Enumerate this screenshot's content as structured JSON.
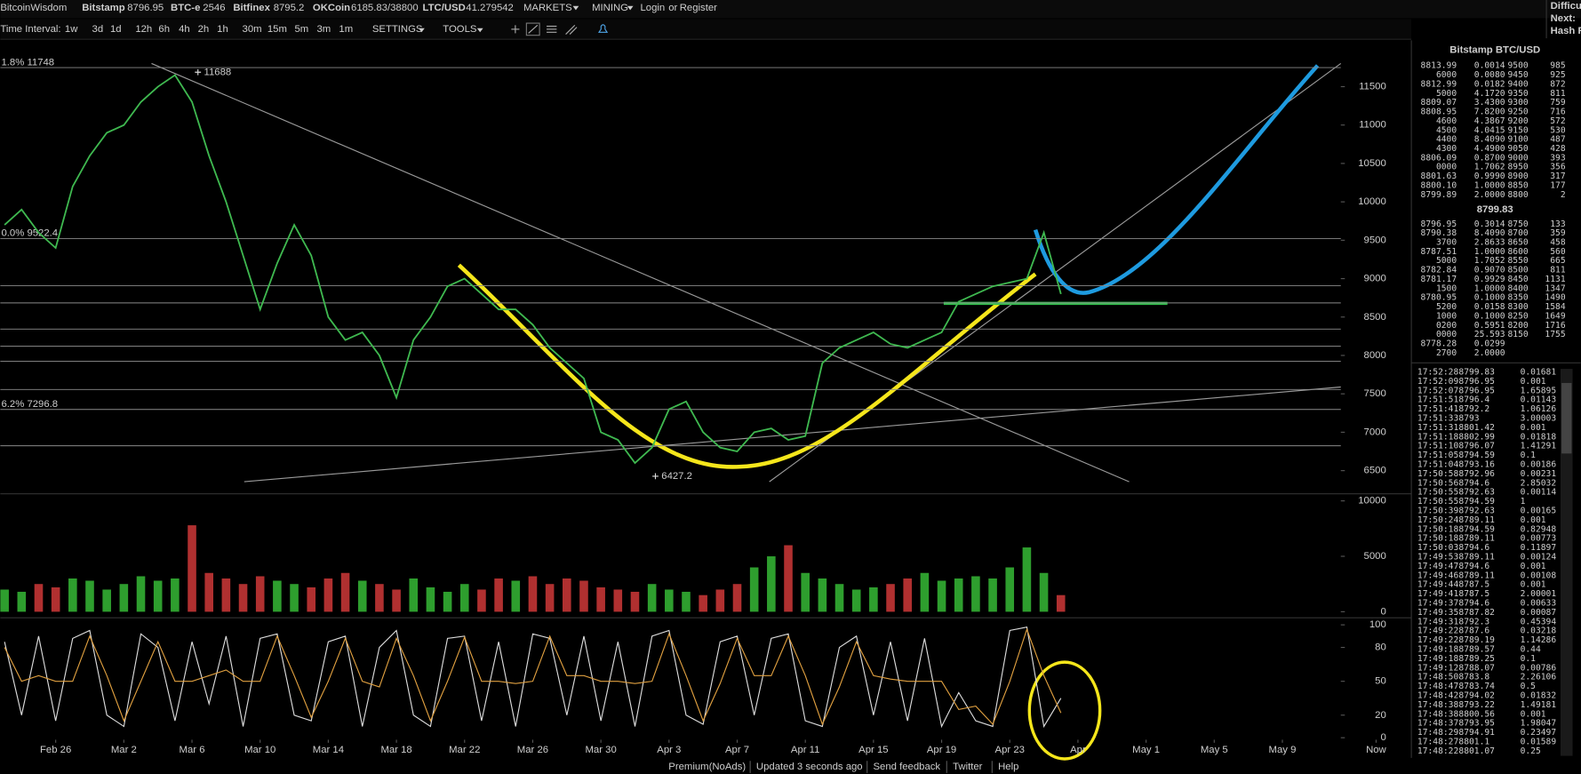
{
  "topbar": {
    "brand": "BitcoinWisdom",
    "exchanges": [
      {
        "name": "Bitstamp",
        "price": "8796.95"
      },
      {
        "name": "BTC-e",
        "price": "2546"
      },
      {
        "name": "Bitfinex",
        "price": "8795.2"
      },
      {
        "name": "OKCoin",
        "price": "6185.83/38800"
      },
      {
        "name": "LTC/USD",
        "price": "41.279542"
      }
    ],
    "menus": [
      "MARKETS",
      "MINING"
    ],
    "login": "Login",
    "or": "or",
    "register": "Register",
    "right": [
      "Difficu",
      "Next:",
      "Hash R"
    ]
  },
  "toolbar": {
    "label": "Time Interval:",
    "intervals": [
      "1w",
      "3d",
      "1d",
      "12h",
      "6h",
      "4h",
      "2h",
      "1h",
      "30m",
      "15m",
      "5m",
      "3m",
      "1m"
    ],
    "selected_index": 6,
    "settings": "SETTINGS",
    "tools": "TOOLS"
  },
  "chart_data": [
    {
      "type": "line",
      "color": "#3fb950",
      "x": [
        -3,
        -2,
        -1,
        0,
        1,
        2,
        3,
        4,
        5,
        6,
        7,
        8,
        9,
        10,
        11,
        12,
        13,
        14,
        15,
        16,
        17,
        18,
        19,
        20,
        21,
        22,
        23,
        24,
        25,
        26,
        27,
        28,
        29,
        30,
        31,
        32,
        33,
        34,
        35,
        36,
        37,
        38,
        39,
        40,
        41,
        42,
        43,
        44,
        45,
        46,
        47,
        48,
        49,
        50,
        51,
        52,
        53,
        54,
        55,
        56,
        57,
        58,
        59
      ],
      "values": [
        9700,
        9900,
        9600,
        9400,
        10200,
        10600,
        10900,
        11000,
        11300,
        11500,
        11650,
        11300,
        10600,
        10000,
        9300,
        8600,
        9200,
        9700,
        9300,
        8500,
        8200,
        8300,
        8000,
        7450,
        8200,
        8500,
        8900,
        9000,
        8800,
        8600,
        8600,
        8400,
        8100,
        7900,
        7700,
        7000,
        6900,
        6600,
        6800,
        7300,
        7400,
        7000,
        6800,
        6750,
        7000,
        7050,
        6900,
        6950,
        7900,
        8100,
        8200,
        8300,
        8150,
        8100,
        8200,
        8300,
        8700,
        8800,
        8900,
        8950,
        9000,
        9600,
        8800
      ],
      "xlim": [
        -3.25,
        77.5
      ],
      "ylim": [
        6198,
        12077
      ],
      "yticks": [
        6500,
        7000,
        7500,
        8000,
        8500,
        9000,
        9500,
        10000,
        10500,
        11000,
        11500
      ],
      "levels": [
        {
          "value": 11748,
          "label": "1.8% 11748"
        },
        {
          "value": 9522.4,
          "label": "0.0% 9522.4"
        },
        8907,
        8684,
        8343,
        8120,
        7923,
        7556,
        {
          "value": 7296.8,
          "label": "6.2% 7296.8"
        },
        6824
      ],
      "annotations": [
        {
          "x": 8.35,
          "value": 11688
        },
        {
          "x": 35.2,
          "value": 6427.2
        }
      ]
    },
    {
      "type": "bar",
      "up_color": "#2e9e2e",
      "down_color": "#b03030",
      "x": [
        -3,
        -2,
        -1,
        0,
        1,
        2,
        3,
        4,
        5,
        6,
        7,
        8,
        9,
        10,
        11,
        12,
        13,
        14,
        15,
        16,
        17,
        18,
        19,
        20,
        21,
        22,
        23,
        24,
        25,
        26,
        27,
        28,
        29,
        30,
        31,
        32,
        33,
        34,
        35,
        36,
        37,
        38,
        39,
        40,
        41,
        42,
        43,
        44,
        45,
        46,
        47,
        48,
        49,
        50,
        51,
        52,
        53,
        54,
        55,
        56,
        57,
        58,
        59
      ],
      "values": [
        2000,
        1800,
        2500,
        2200,
        3000,
        2800,
        2000,
        2500,
        3200,
        2800,
        3000,
        7800,
        3500,
        3000,
        2500,
        3200,
        2800,
        2500,
        2200,
        3000,
        3500,
        2800,
        2500,
        2000,
        3000,
        2200,
        1800,
        2500,
        2000,
        3000,
        2800,
        3200,
        2500,
        3000,
        2800,
        2200,
        2000,
        1800,
        2500,
        2000,
        1800,
        1500,
        2000,
        2500,
        4000,
        5000,
        6000,
        3500,
        3000,
        2500,
        2000,
        2200,
        2500,
        3000,
        3500,
        2800,
        3000,
        3200,
        3000,
        4000,
        5800,
        3500,
        1500
      ],
      "xlim": [
        -3.25,
        77.5
      ],
      "ylim": [
        0,
        10000
      ],
      "yticks": [
        0,
        5000,
        10000
      ]
    },
    {
      "type": "line",
      "x": [
        -3,
        -2,
        -1,
        0,
        1,
        2,
        3,
        4,
        5,
        6,
        7,
        8,
        9,
        10,
        11,
        12,
        13,
        14,
        15,
        16,
        17,
        18,
        19,
        20,
        21,
        22,
        23,
        24,
        25,
        26,
        27,
        28,
        29,
        30,
        31,
        32,
        33,
        34,
        35,
        36,
        37,
        38,
        39,
        40,
        41,
        42,
        43,
        44,
        45,
        46,
        47,
        48,
        49,
        50,
        51,
        52,
        53,
        54,
        55,
        56,
        57,
        58,
        59
      ],
      "series": [
        {
          "color": "#dcdcdc",
          "values": [
            85,
            20,
            90,
            15,
            88,
            95,
            20,
            10,
            92,
            80,
            15,
            85,
            30,
            90,
            10,
            88,
            92,
            20,
            15,
            85,
            90,
            10,
            80,
            95,
            20,
            10,
            88,
            90,
            15,
            85,
            10,
            92,
            88,
            20,
            90,
            15,
            85,
            10,
            90,
            95,
            20,
            12,
            85,
            90,
            20,
            88,
            92,
            15,
            10,
            80,
            90,
            20,
            85,
            15,
            88,
            10,
            40,
            15,
            10,
            95,
            98,
            10,
            35
          ]
        },
        {
          "color": "#e0a040",
          "values": [
            80,
            50,
            55,
            50,
            50,
            90,
            55,
            15,
            50,
            85,
            50,
            50,
            55,
            60,
            50,
            50,
            90,
            55,
            18,
            50,
            88,
            50,
            45,
            88,
            55,
            15,
            50,
            89,
            50,
            50,
            48,
            50,
            90,
            55,
            55,
            50,
            50,
            48,
            50,
            92,
            55,
            15,
            48,
            88,
            55,
            55,
            90,
            55,
            12,
            45,
            85,
            55,
            52,
            50,
            50,
            50,
            25,
            28,
            12,
            50,
            96,
            55,
            22
          ]
        }
      ],
      "xlim": [
        -3.25,
        77.5
      ],
      "ylim": [
        0,
        100
      ],
      "yticks": [
        0,
        20,
        50,
        80,
        100
      ],
      "xticks": [
        {
          "value": 0,
          "label": "Feb 26"
        },
        {
          "value": 4,
          "label": "Mar 2"
        },
        {
          "value": 8,
          "label": "Mar 6"
        },
        {
          "value": 12,
          "label": "Mar 10"
        },
        {
          "value": 16,
          "label": "Mar 14"
        },
        {
          "value": 20,
          "label": "Mar 18"
        },
        {
          "value": 24,
          "label": "Mar 22"
        },
        {
          "value": 28,
          "label": "Mar 26"
        },
        {
          "value": 32,
          "label": "Mar 30"
        },
        {
          "value": 36,
          "label": "Apr 3"
        },
        {
          "value": 40,
          "label": "Apr 7"
        },
        {
          "value": 44,
          "label": "Apr 11"
        },
        {
          "value": 48,
          "label": "Apr 15"
        },
        {
          "value": 52,
          "label": "Apr 19"
        },
        {
          "value": 56,
          "label": "Apr 23"
        },
        {
          "value": 60,
          "label": "Apr"
        },
        {
          "value": 64,
          "label": "May 1"
        },
        {
          "value": 68,
          "label": "May 5"
        },
        {
          "value": 72,
          "label": "May 9"
        },
        {
          "value": 77.5,
          "label": "Now"
        }
      ]
    }
  ],
  "orderbook": {
    "title": "Bitstamp BTC/USD",
    "asks": [
      [
        "8813.99",
        "0.0014",
        "9500",
        "985"
      ],
      [
        "6000",
        "0.0080",
        "9450",
        "925"
      ],
      [
        "8812.99",
        "0.0182",
        "9400",
        "872"
      ],
      [
        "5000",
        "4.1720",
        "9350",
        "811"
      ],
      [
        "8809.07",
        "3.4300",
        "9300",
        "759"
      ],
      [
        "8808.95",
        "7.8200",
        "9250",
        "716"
      ],
      [
        "4600",
        "4.3867",
        "9200",
        "572"
      ],
      [
        "4500",
        "4.0415",
        "9150",
        "530"
      ],
      [
        "4400",
        "8.4090",
        "9100",
        "487"
      ],
      [
        "4300",
        "4.4900",
        "9050",
        "428"
      ],
      [
        "8806.09",
        "0.8700",
        "9000",
        "393"
      ],
      [
        "0000",
        "1.7062",
        "8950",
        "356"
      ],
      [
        "8801.63",
        "0.9990",
        "8900",
        "317"
      ],
      [
        "8800.10",
        "1.0000",
        "8850",
        "177"
      ],
      [
        "8799.89",
        "2.0000",
        "8800",
        "2"
      ]
    ],
    "last": "8799.83",
    "bids": [
      [
        "8796.95",
        "0.3014",
        "8750",
        "133"
      ],
      [
        "8790.38",
        "8.4090",
        "8700",
        "359"
      ],
      [
        "3700",
        "2.8633",
        "8650",
        "458"
      ],
      [
        "8787.51",
        "1.0000",
        "8600",
        "560"
      ],
      [
        "5000",
        "1.7052",
        "8550",
        "665"
      ],
      [
        "8782.84",
        "0.9070",
        "8500",
        "811"
      ],
      [
        "8781.17",
        "0.9929",
        "8450",
        "1131"
      ],
      [
        "1500",
        "1.0000",
        "8400",
        "1347"
      ],
      [
        "8780.95",
        "0.1000",
        "8350",
        "1490"
      ],
      [
        "5200",
        "0.0158",
        "8300",
        "1584"
      ],
      [
        "1000",
        "0.1000",
        "8250",
        "1649"
      ],
      [
        "0200",
        "0.5951",
        "8200",
        "1716"
      ],
      [
        "0000",
        "25.593",
        "8150",
        "1755"
      ],
      [
        "8778.28",
        "0.0299"
      ],
      [
        "2700",
        "2.0000"
      ]
    ]
  },
  "trades": [
    [
      "17:52:28",
      "8799.83",
      "0.01681",
      "#3ec93e"
    ],
    [
      "17:52:09",
      "8796.95",
      "0.001",
      "#3ec93e"
    ],
    [
      "17:52:07",
      "8796.95",
      "1.65895",
      "#3ec93e"
    ],
    [
      "17:51:51",
      "8796.4",
      "0.01143",
      "#3ec93e"
    ],
    [
      "17:51:41",
      "8792.2",
      "1.06126",
      "#e04848"
    ],
    [
      "17:51:33",
      "8793",
      "3.00003",
      "#e04848"
    ],
    [
      "17:51:31",
      "8801.42",
      "0.001",
      "#3ec93e"
    ],
    [
      "17:51:18",
      "8802.99",
      "0.01818",
      "#3ec93e"
    ],
    [
      "17:51:10",
      "8796.07",
      "1.41291",
      "#3ec93e"
    ],
    [
      "17:51:05",
      "8794.59",
      "0.1",
      "#3ec93e"
    ],
    [
      "17:51:04",
      "8793.16",
      "0.00186",
      "#e04848"
    ],
    [
      "17:50:58",
      "8792.96",
      "0.00231",
      "#e04848"
    ],
    [
      "17:50:56",
      "8794.6",
      "2.85032",
      "#3ec93e"
    ],
    [
      "17:50:55",
      "8792.63",
      "0.00114",
      "#e04848"
    ],
    [
      "17:50:55",
      "8794.59",
      "1",
      "#3ec93e"
    ],
    [
      "17:50:39",
      "8792.63",
      "0.00165",
      "#3ec93e"
    ],
    [
      "17:50:24",
      "8789.11",
      "0.001",
      "#e04848"
    ],
    [
      "17:50:18",
      "8794.59",
      "0.82948",
      "#3ec93e"
    ],
    [
      "17:50:18",
      "8789.11",
      "0.00773",
      "#e04848"
    ],
    [
      "17:50:03",
      "8794.6",
      "0.11897",
      "#3ec93e"
    ],
    [
      "17:49:53",
      "8789.11",
      "0.00124",
      "#e04848"
    ],
    [
      "17:49:47",
      "8794.6",
      "0.001",
      "#3ec93e"
    ],
    [
      "17:49:46",
      "8789.11",
      "0.00108",
      "#e04848"
    ],
    [
      "17:49:44",
      "8787.5",
      "0.001",
      "#e04848"
    ],
    [
      "17:49:41",
      "8787.5",
      "2.00001",
      "#e04848"
    ],
    [
      "17:49:37",
      "8794.6",
      "0.00633",
      "#3ec93e"
    ],
    [
      "17:49:35",
      "8787.82",
      "0.00087",
      "#e04848"
    ],
    [
      "17:49:31",
      "8792.3",
      "0.45394",
      "#3ec93e"
    ],
    [
      "17:49:22",
      "8787.6",
      "0.03218",
      "#e04848"
    ],
    [
      "17:49:22",
      "8789.19",
      "1.14286",
      "#3ec93e"
    ],
    [
      "17:49:18",
      "8789.57",
      "0.44",
      "#3ec93e"
    ],
    [
      "17:49:18",
      "8789.25",
      "0.1",
      "#3ec93e"
    ],
    [
      "17:49:12",
      "8788.07",
      "0.00786",
      "#3ec93e"
    ],
    [
      "17:48:50",
      "8783.8",
      "2.26106",
      "#e04848"
    ],
    [
      "17:48:47",
      "8783.74",
      "0.5",
      "#e04848"
    ],
    [
      "17:48:42",
      "8794.02",
      "0.01832",
      "#e04848"
    ],
    [
      "17:48:38",
      "8793.22",
      "1.49181",
      "#e04848"
    ],
    [
      "17:48:38",
      "8800.56",
      "0.001",
      "#3ec93e"
    ],
    [
      "17:48:37",
      "8793.95",
      "1.98047",
      "#e04848"
    ],
    [
      "17:48:29",
      "8794.91",
      "0.23497",
      "#e04848"
    ],
    [
      "17:48:27",
      "8801.1",
      "0.01589",
      "#3ec93e"
    ],
    [
      "17:48:22",
      "8801.07",
      "0.25",
      "#3ec93e"
    ]
  ],
  "footer": {
    "links": [
      "Premium(NoAds)",
      "Updated 3 seconds ago",
      "Send feedback",
      "Twitter",
      "Help"
    ]
  }
}
